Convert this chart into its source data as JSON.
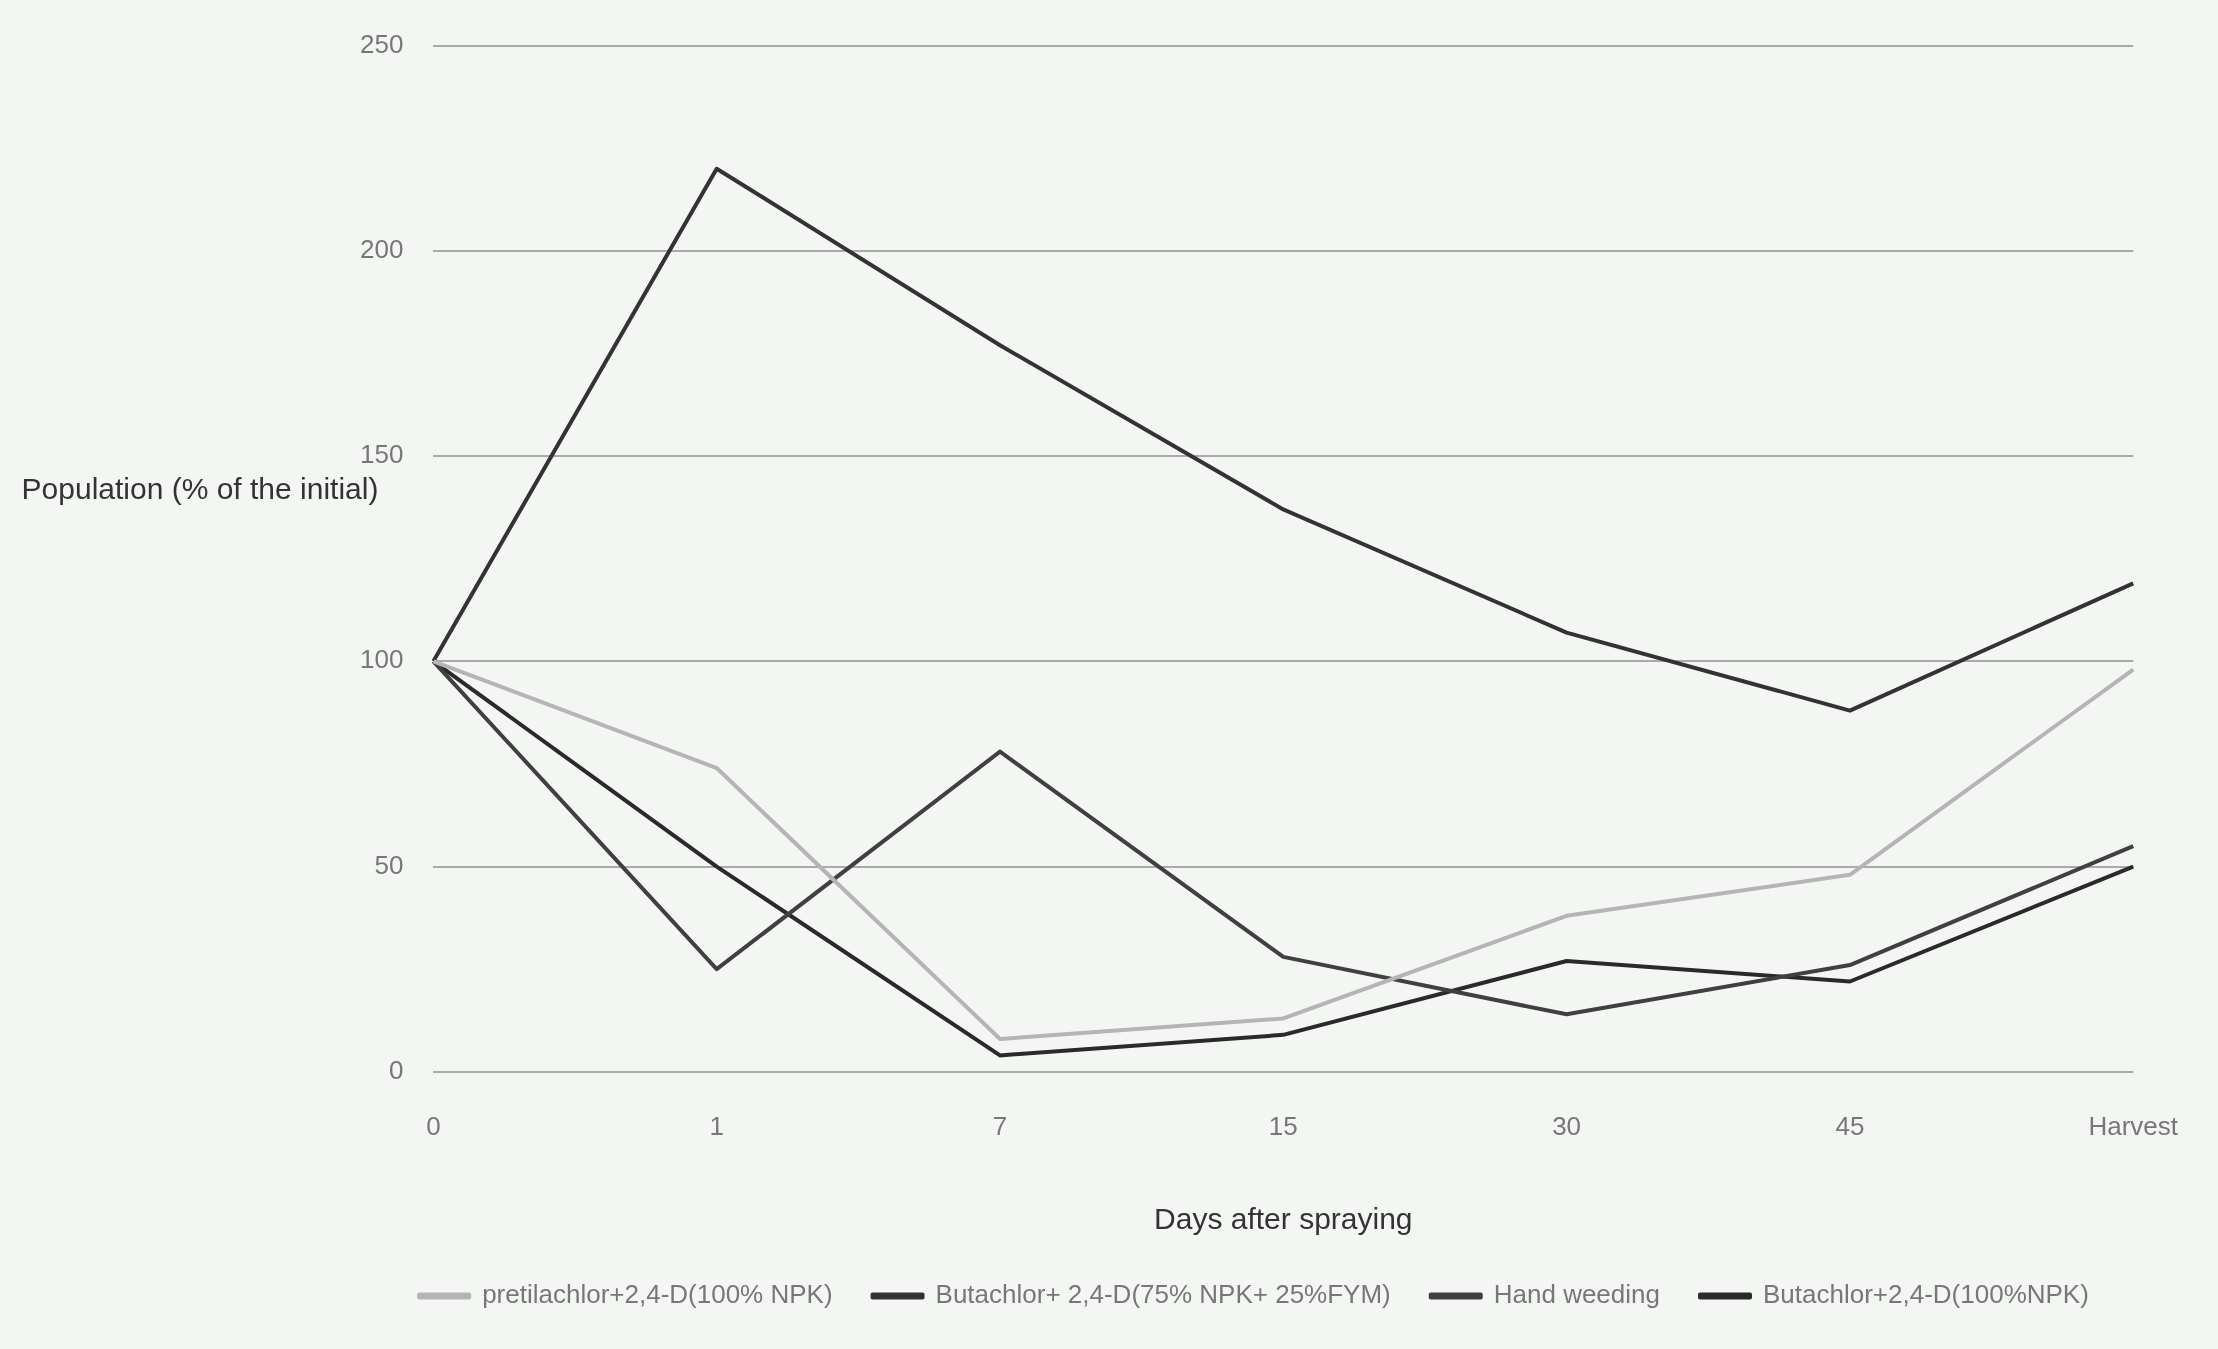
{
  "chart_data": {
    "type": "line",
    "xlabel": "Days after spraying",
    "ylabel": "Population (% of the initial)",
    "categories": [
      "0",
      "1",
      "7",
      "15",
      "30",
      "45",
      "Harvest"
    ],
    "series": [
      {
        "name": "pretilachlor+2,4-D(100% NPK)",
        "color": "#b5b5b5",
        "values": [
          100,
          74,
          8,
          13,
          38,
          48,
          98
        ]
      },
      {
        "name": "Butachlor+ 2,4-D(75% NPK+ 25%FYM)",
        "color": "#333333",
        "values": [
          100,
          220,
          177,
          137,
          107,
          88,
          119
        ]
      },
      {
        "name": "Hand weeding",
        "color": "#404040",
        "values": [
          100,
          25,
          78,
          28,
          14,
          26,
          55
        ]
      },
      {
        "name": "Butachlor+2,4-D(100%NPK)",
        "color": "#2a2a2a",
        "values": [
          100,
          50,
          4,
          9,
          27,
          22,
          50
        ]
      }
    ],
    "ylim": [
      0,
      250
    ],
    "yticks": [
      0,
      50,
      100,
      150,
      200,
      250
    ],
    "grid": "y",
    "legend": "bottom",
    "marker": "none",
    "line_style": "solid"
  }
}
